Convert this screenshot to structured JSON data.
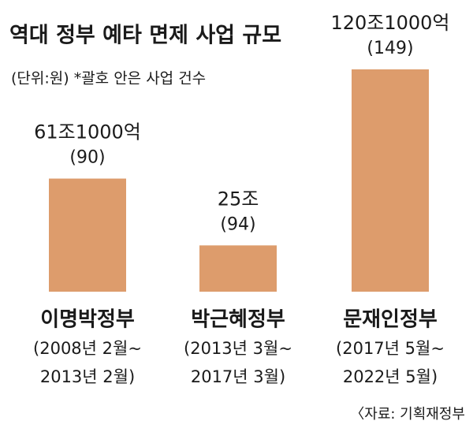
{
  "chart_data": {
    "type": "bar",
    "title": "역대 정부 예타 면제 사업 규모",
    "subtitle": "(단위:원)  *괄호 안은 사업 건수",
    "categories": [
      "이명박정부",
      "박근혜정부",
      "문재인정부"
    ],
    "periods": [
      [
        "(2008년 2월~",
        "2013년 2월)"
      ],
      [
        "(2013년 3월~",
        "2017년 3월)"
      ],
      [
        "(2017년 5월~",
        "2022년 5월)"
      ]
    ],
    "values": [
      61.1,
      25,
      120.1
    ],
    "value_labels": [
      "61조1000억",
      "25조",
      "120조1000억"
    ],
    "counts": [
      "(90)",
      "(94)",
      "(149)"
    ],
    "color": "#dd9c6c",
    "source": "〈자료: 기획재정부"
  }
}
